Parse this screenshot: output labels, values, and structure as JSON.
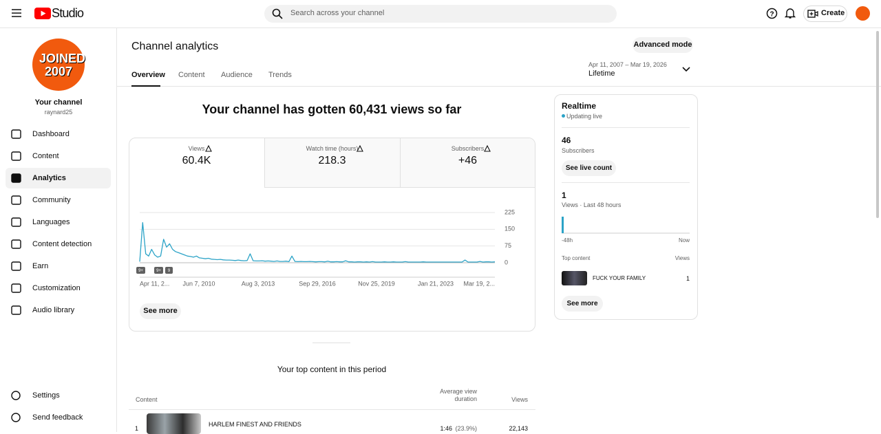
{
  "topbar": {
    "logo": "Studio",
    "search_placeholder": "Search across your channel",
    "create": "Create"
  },
  "sidebar": {
    "channel_avatar": "JOINED 2007",
    "channel_label": "Your channel",
    "channel_handle": "raynard25",
    "nav": [
      "Dashboard",
      "Content",
      "Analytics",
      "Community",
      "Languages",
      "Content detection",
      "Earn",
      "Customization",
      "Audio library"
    ],
    "footer_nav": [
      "Settings",
      "Send feedback"
    ]
  },
  "header": {
    "title": "Channel analytics",
    "tabs": [
      "Overview",
      "Content",
      "Audience",
      "Trends"
    ],
    "advanced_mode": "Advanced mode",
    "date_range": "Apr 11, 2007 – Mar 19, 2026",
    "period": "Lifetime"
  },
  "summary": {
    "headline": "Your channel has gotten 60,431 views so far",
    "metrics": [
      {
        "label": "Views",
        "value": "60.4K"
      },
      {
        "label": "Watch time (hours)",
        "value": "218.3"
      },
      {
        "label": "Subscribers",
        "value": "+46"
      }
    ],
    "see_more": "See more"
  },
  "views_chart": {
    "type": "line",
    "color": "#2ba3c7",
    "values": [
      5,
      180,
      40,
      30,
      60,
      35,
      25,
      30,
      105,
      70,
      85,
      60,
      50,
      45,
      40,
      35,
      30,
      28,
      25,
      30,
      22,
      20,
      18,
      20,
      16,
      15,
      14,
      15,
      13,
      12,
      12,
      11,
      10,
      12,
      10,
      9,
      10,
      40,
      9,
      8,
      8,
      9,
      7,
      8,
      7,
      6,
      8,
      6,
      6,
      7,
      5,
      30,
      6,
      5,
      6,
      5,
      5,
      6,
      5,
      4,
      5,
      5,
      4,
      7,
      4,
      4,
      5,
      4,
      4,
      9,
      4,
      4,
      3,
      4,
      4,
      3,
      4,
      3,
      5,
      3,
      3,
      3,
      4,
      3,
      3,
      4,
      3,
      3,
      3,
      5,
      3,
      3,
      3,
      3,
      3,
      4,
      3,
      3,
      3,
      3,
      3,
      3,
      3,
      3,
      3,
      3,
      3,
      3,
      3,
      12,
      3,
      3,
      3,
      3,
      6,
      3,
      4,
      4,
      3,
      4
    ],
    "ylim": [
      0,
      225
    ],
    "yticks": [
      0,
      75,
      150,
      225
    ],
    "grid": true,
    "x_tick_labels": [
      "Apr 11, 2...",
      "Jun 7, 2010",
      "Aug 3, 2013",
      "Sep 29, 2016",
      "Nov 25, 2019",
      "Jan 21, 2023",
      "Mar 19, 2..."
    ],
    "markers": [
      "9+",
      "9+",
      "9"
    ]
  },
  "top_content": {
    "title": "Your top content in this period",
    "columns": [
      "Content",
      "Average view duration",
      "Views"
    ],
    "rows": [
      {
        "rank": "1",
        "title": "HARLEM FINEST AND FRIENDS",
        "avg_duration": "1:46",
        "avg_percent": "(23.9%)",
        "views": "22,143"
      }
    ]
  },
  "realtime": {
    "title": "Realtime",
    "status": "Updating live",
    "subscribers": "46",
    "subscribers_label": "Subscribers",
    "see_live_count": "See live count",
    "views": 1,
    "views_label": "Views · Last 48 hours",
    "axis_start": "-48h",
    "axis_end": "Now",
    "top_content_label": "Top content",
    "views_column": "Views",
    "top_item": {
      "title": "FUCK YOUR FAMILY",
      "views": "1"
    },
    "see_more": "See more"
  }
}
